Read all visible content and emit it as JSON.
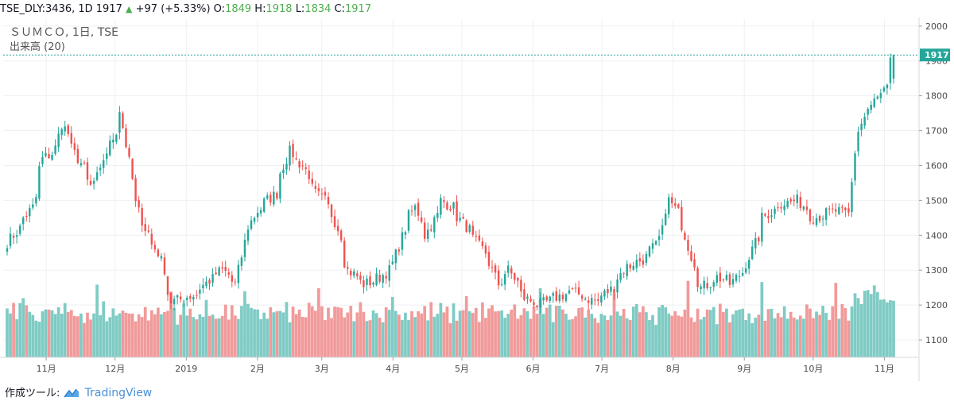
{
  "header": {
    "symbol_info": "TSE_DLY:3436, 1D 1917",
    "change": "+97 (+5.33%)",
    "o_label": "O:",
    "o_value": "1849",
    "h_label": "H:",
    "h_value": "1918",
    "l_label": "L:",
    "l_value": "1834",
    "c_label": "C:",
    "c_value": "1917"
  },
  "legend": {
    "title": "ＳＵＭＣＯ, 1日, TSE",
    "volume_label": "出来高 (20)"
  },
  "footer": {
    "label": "作成ツール:",
    "brand": "TradingView"
  },
  "colors": {
    "up": "#26a69a",
    "down": "#ef5350",
    "up_volume": "#7fcbc4",
    "down_volume": "#f19a9a",
    "grid": "#eef0f3",
    "last_price_line": "#26a69a",
    "change_text": "#4cae4f"
  },
  "chart_data": {
    "type": "candlestick",
    "title": "ＳＵＭＣＯ, 1日, TSE",
    "y_axis": {
      "range": [
        1050,
        2020
      ],
      "ticks": [
        1100,
        1200,
        1300,
        1400,
        1500,
        1600,
        1700,
        1800,
        1900,
        2000
      ]
    },
    "x_axis": {
      "labels": [
        "11月",
        "12月",
        "2019",
        "2月",
        "3月",
        "4月",
        "5月",
        "6月",
        "7月",
        "8月",
        "9月",
        "10月",
        "11月"
      ]
    },
    "last_price": 1917,
    "last_ohlc": {
      "open": 1849,
      "high": 1918,
      "low": 1834,
      "close": 1917
    },
    "close_keyframes": [
      [
        "2018-10-15",
        1380
      ],
      [
        "2018-10-25",
        1480
      ],
      [
        "2018-10-30",
        1620
      ],
      [
        "2018-11-05",
        1650
      ],
      [
        "2018-11-07",
        1720
      ],
      [
        "2018-11-14",
        1620
      ],
      [
        "2018-11-20",
        1540
      ],
      [
        "2018-11-26",
        1620
      ],
      [
        "2018-12-03",
        1760
      ],
      [
        "2018-12-07",
        1560
      ],
      [
        "2018-12-13",
        1420
      ],
      [
        "2018-12-19",
        1350
      ],
      [
        "2018-12-25",
        1210
      ],
      [
        "2019-01-04",
        1230
      ],
      [
        "2019-01-10",
        1270
      ],
      [
        "2019-01-16",
        1300
      ],
      [
        "2019-01-22",
        1260
      ],
      [
        "2019-01-25",
        1380
      ],
      [
        "2019-01-31",
        1470
      ],
      [
        "2019-02-08",
        1520
      ],
      [
        "2019-02-14",
        1640
      ],
      [
        "2019-02-20",
        1600
      ],
      [
        "2019-02-26",
        1520
      ],
      [
        "2019-03-04",
        1480
      ],
      [
        "2019-03-08",
        1400
      ],
      [
        "2019-03-12",
        1300
      ],
      [
        "2019-03-19",
        1260
      ],
      [
        "2019-03-26",
        1280
      ],
      [
        "2019-04-01",
        1320
      ],
      [
        "2019-04-05",
        1420
      ],
      [
        "2019-04-10",
        1480
      ],
      [
        "2019-04-15",
        1400
      ],
      [
        "2019-04-22",
        1500
      ],
      [
        "2019-04-26",
        1480
      ],
      [
        "2019-05-07",
        1380
      ],
      [
        "2019-05-13",
        1320
      ],
      [
        "2019-05-16",
        1260
      ],
      [
        "2019-05-21",
        1300
      ],
      [
        "2019-05-28",
        1220
      ],
      [
        "2019-06-03",
        1200
      ],
      [
        "2019-06-10",
        1220
      ],
      [
        "2019-06-17",
        1240
      ],
      [
        "2019-06-24",
        1220
      ],
      [
        "2019-06-28",
        1210
      ],
      [
        "2019-07-05",
        1250
      ],
      [
        "2019-07-11",
        1310
      ],
      [
        "2019-07-18",
        1330
      ],
      [
        "2019-07-24",
        1370
      ],
      [
        "2019-07-30",
        1500
      ],
      [
        "2019-08-05",
        1430
      ],
      [
        "2019-08-08",
        1340
      ],
      [
        "2019-08-13",
        1250
      ],
      [
        "2019-08-20",
        1280
      ],
      [
        "2019-08-26",
        1260
      ],
      [
        "2019-09-02",
        1320
      ],
      [
        "2019-09-09",
        1450
      ],
      [
        "2019-09-16",
        1490
      ],
      [
        "2019-09-24",
        1500
      ],
      [
        "2019-10-01",
        1450
      ],
      [
        "2019-10-10",
        1470
      ],
      [
        "2019-10-16",
        1460
      ],
      [
        "2019-10-18",
        1640
      ],
      [
        "2019-10-24",
        1760
      ],
      [
        "2019-10-30",
        1800
      ],
      [
        "2019-11-01",
        1820
      ],
      [
        "2019-11-05",
        1917
      ]
    ],
    "volume_pattern": [
      0.55,
      0.5,
      0.6,
      0.45,
      0.7,
      0.4,
      0.5,
      0.65,
      0.45,
      0.55,
      0.35,
      0.6,
      0.5,
      0.4,
      0.75,
      0.45
    ]
  }
}
